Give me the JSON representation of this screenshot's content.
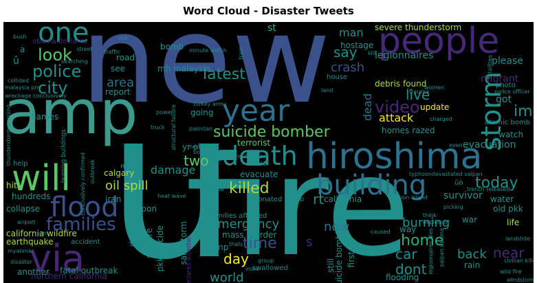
{
  "title": "Word Cloud - Disaster Tweets",
  "palette": [
    "#440154",
    "#472878",
    "#3b518b",
    "#2c718e",
    "#21908d",
    "#27ad81",
    "#5cc863",
    "#aadc32",
    "#fde725"
  ],
  "words": [
    {
      "id": "new",
      "text": "new"
    },
    {
      "id": "u",
      "text": "u"
    },
    {
      "id": "fire",
      "text": "fire"
    },
    {
      "id": "amp",
      "text": "amp"
    },
    {
      "id": "hiroshima",
      "text": "hiroshima"
    },
    {
      "id": "people",
      "text": "people"
    },
    {
      "id": "via",
      "text": "via"
    },
    {
      "id": "will",
      "text": "will"
    },
    {
      "id": "year",
      "text": "year"
    },
    {
      "id": "death",
      "text": "death"
    },
    {
      "id": "building",
      "text": "building"
    },
    {
      "id": "storm",
      "text": "storm"
    },
    {
      "id": "flood",
      "text": "flood"
    },
    {
      "id": "one",
      "text": "one"
    },
    {
      "id": "families",
      "text": "families"
    },
    {
      "id": "police",
      "text": "police"
    },
    {
      "id": "city",
      "text": "city"
    },
    {
      "id": "look",
      "text": "look"
    },
    {
      "id": "video",
      "text": "video"
    },
    {
      "id": "latest",
      "text": "latest"
    },
    {
      "id": "suicide_bomber",
      "text": "suicide bomber"
    },
    {
      "id": "killed",
      "text": "killed"
    },
    {
      "id": "time",
      "text": "time"
    },
    {
      "id": "home",
      "text": "home"
    },
    {
      "id": "today",
      "text": "today"
    },
    {
      "id": "im",
      "text": "im"
    },
    {
      "id": "say",
      "text": "say"
    },
    {
      "id": "crash",
      "text": "crash"
    },
    {
      "id": "area",
      "text": "area"
    },
    {
      "id": "live",
      "text": "live"
    },
    {
      "id": "oil_spill",
      "text": "oil spill"
    },
    {
      "id": "two",
      "text": "two"
    },
    {
      "id": "world",
      "text": "world"
    },
    {
      "id": "day",
      "text": "day"
    },
    {
      "id": "emergency",
      "text": "emergency"
    },
    {
      "id": "burning",
      "text": "burning"
    },
    {
      "id": "car",
      "text": "car"
    },
    {
      "id": "dont",
      "text": "dont"
    },
    {
      "id": "back",
      "text": "back"
    },
    {
      "id": "near",
      "text": "near"
    },
    {
      "id": "now",
      "text": "now"
    },
    {
      "id": "rt",
      "text": "rt"
    },
    {
      "id": "s",
      "text": "s"
    },
    {
      "id": "man",
      "text": "man"
    },
    {
      "id": "st",
      "text": "st"
    },
    {
      "id": "damage",
      "text": "damage"
    },
    {
      "id": "attack",
      "text": "attack"
    },
    {
      "id": "dead",
      "text": "dead"
    },
    {
      "id": "evacuation",
      "text": "evacuation"
    },
    {
      "id": "severe_thunderstorm",
      "text": "severe thunderstorm"
    },
    {
      "id": "legionnaires",
      "text": "legionnaires"
    },
    {
      "id": "debris_found",
      "text": "debris found"
    },
    {
      "id": "migrant",
      "text": "migrant"
    },
    {
      "id": "please",
      "text": "please"
    },
    {
      "id": "got",
      "text": "got"
    },
    {
      "id": "watch",
      "text": "watch"
    },
    {
      "id": "water",
      "text": "water"
    },
    {
      "id": "old_pkk",
      "text": "old pkk"
    },
    {
      "id": "life",
      "text": "life"
    },
    {
      "id": "war",
      "text": "war"
    },
    {
      "id": "rain",
      "text": "rain"
    },
    {
      "id": "update",
      "text": "update"
    },
    {
      "id": "terrorist",
      "text": "terrorist"
    },
    {
      "id": "yr_old",
      "text": "yr old"
    },
    {
      "id": "homes_razed",
      "text": "homes razed"
    },
    {
      "id": "evacuate",
      "text": "evacuate"
    },
    {
      "id": "california",
      "text": "california"
    },
    {
      "id": "survivor",
      "text": "survivor"
    },
    {
      "id": "california_wildfire",
      "text": "california wildfire"
    },
    {
      "id": "earthquake",
      "text": "earthquake"
    },
    {
      "id": "northern_california",
      "text": "northern california"
    },
    {
      "id": "collapse",
      "text": "collapse"
    },
    {
      "id": "hundreds",
      "text": "hundreds"
    },
    {
      "id": "weapon",
      "text": "weapon"
    },
    {
      "id": "iran",
      "text": "iran"
    },
    {
      "id": "calgary",
      "text": "calgary"
    },
    {
      "id": "flames",
      "text": "flames"
    },
    {
      "id": "going",
      "text": "going"
    },
    {
      "id": "report",
      "text": "report"
    },
    {
      "id": "see",
      "text": "see"
    },
    {
      "id": "road",
      "text": "road"
    },
    {
      "id": "mh_malaysia",
      "text": "mh malaysia"
    },
    {
      "id": "bomb",
      "text": "bomb"
    },
    {
      "id": "hostage",
      "text": "hostage"
    },
    {
      "id": "mass_murder",
      "text": "mass murder"
    },
    {
      "id": "drought",
      "text": "drought"
    },
    {
      "id": "wildfire",
      "text": "wildfire"
    },
    {
      "id": "pkk_suicide",
      "text": "pkk suicide"
    },
    {
      "id": "sandstorm",
      "text": "sandstorm"
    },
    {
      "id": "suicide_bombing",
      "text": "suicide bombing"
    },
    {
      "id": "flooding",
      "text": "flooding"
    },
    {
      "id": "another",
      "text": "another"
    },
    {
      "id": "fatal_outbreak",
      "text": "fatal outbreak"
    },
    {
      "id": "accident",
      "text": "accident"
    },
    {
      "id": "way",
      "text": "way"
    },
    {
      "id": "still",
      "text": "still"
    },
    {
      "id": "first",
      "text": "first"
    },
    {
      "id": "atomic_bomb",
      "text": "atomic bomb"
    },
    {
      "id": "obama_declares",
      "text": "obama declares"
    },
    {
      "id": "u_hat",
      "text": "û"
    },
    {
      "id": "a",
      "text": "a"
    },
    {
      "id": "mp",
      "text": "mp"
    },
    {
      "id": "sue",
      "text": "sue"
    },
    {
      "id": "families_affected",
      "text": "families affected"
    },
    {
      "id": "detonated_bomb",
      "text": "detonated bomb"
    },
    {
      "id": "swallowed",
      "text": "swallowed"
    },
    {
      "id": "hit",
      "text": "hit"
    },
    {
      "id": "help",
      "text": "help"
    },
    {
      "id": "house",
      "text": "house"
    },
    {
      "id": "photo",
      "text": "photo"
    },
    {
      "id": "said",
      "text": "said"
    },
    {
      "id": "may",
      "text": "may"
    },
    {
      "id": "heat_wave",
      "text": "heat wave"
    },
    {
      "id": "pm",
      "text": "pm"
    },
    {
      "id": "wild_fire",
      "text": "wild fire"
    },
    {
      "id": "landslide",
      "text": "landslide"
    },
    {
      "id": "police_officer",
      "text": "police officer"
    },
    {
      "id": "fatalities",
      "text": "fatalities"
    },
    {
      "id": "trauma",
      "text": "trauma"
    },
    {
      "id": "women",
      "text": "women"
    },
    {
      "id": "charged",
      "text": "charged"
    },
    {
      "id": "minute_watch",
      "text": "minute watch"
    },
    {
      "id": "traffic",
      "text": "traffic"
    },
    {
      "id": "street",
      "text": "street"
    },
    {
      "id": "collided",
      "text": "collided"
    },
    {
      "id": "wreckage_conclusively",
      "text": "wreckage conclusively"
    },
    {
      "id": "malaysia_pm",
      "text": "malaysia pm"
    },
    {
      "id": "turkey_army",
      "text": "turkey army"
    },
    {
      "id": "pakistan",
      "text": "pakistan"
    },
    {
      "id": "truck",
      "text": "truck"
    },
    {
      "id": "structural_failure",
      "text": "structural failure"
    },
    {
      "id": "power",
      "text": "power"
    },
    {
      "id": "signs_disaster",
      "text": "signs disaster"
    },
    {
      "id": "typhoon",
      "text": "typhoondevastated saipan"
    },
    {
      "id": "explosion",
      "text": "explosion"
    },
    {
      "id": "reunion_island",
      "text": "reunion island"
    },
    {
      "id": "airport",
      "text": "airport"
    },
    {
      "id": "myanmar",
      "text": "myanmar"
    },
    {
      "id": "disaster",
      "text": "disaster"
    },
    {
      "id": "group",
      "text": "group"
    },
    {
      "id": "india",
      "text": "india"
    },
    {
      "id": "thats",
      "text": "thats"
    },
    {
      "id": "even",
      "text": "even"
    },
    {
      "id": "land",
      "text": "land"
    },
    {
      "id": "bodies",
      "text": "bodies"
    },
    {
      "id": "north",
      "text": "north"
    },
    {
      "id": "know",
      "text": "know"
    },
    {
      "id": "caused",
      "text": "caused"
    },
    {
      "id": "think",
      "text": "think"
    },
    {
      "id": "shit",
      "text": "shit"
    },
    {
      "id": "bush",
      "text": "bush"
    },
    {
      "id": "searching",
      "text": "searching"
    },
    {
      "id": "train",
      "text": "train"
    },
    {
      "id": "kill",
      "text": "kill"
    },
    {
      "id": "picking",
      "text": "picking"
    },
    {
      "id": "thunderstorm_warning",
      "text": "thunderstorm warning"
    },
    {
      "id": "burning_buildings",
      "text": "burning buildings"
    },
    {
      "id": "declares_disaster",
      "text": "declares disaster"
    },
    {
      "id": "conclusively_confirmed",
      "text": "conclusively confirmed"
    },
    {
      "id": "outbreak",
      "text": "outbreak"
    },
    {
      "id": "civilian",
      "text": "civilian killed"
    },
    {
      "id": "u_o",
      "text": "ûò"
    },
    {
      "id": "trench",
      "text": "trench released"
    },
    {
      "id": "saipan",
      "text": "saipan obama"
    },
    {
      "id": "legionnaires_dies",
      "text": "legionnaires dies"
    },
    {
      "id": "windstorm",
      "text": "windstorm"
    }
  ]
}
